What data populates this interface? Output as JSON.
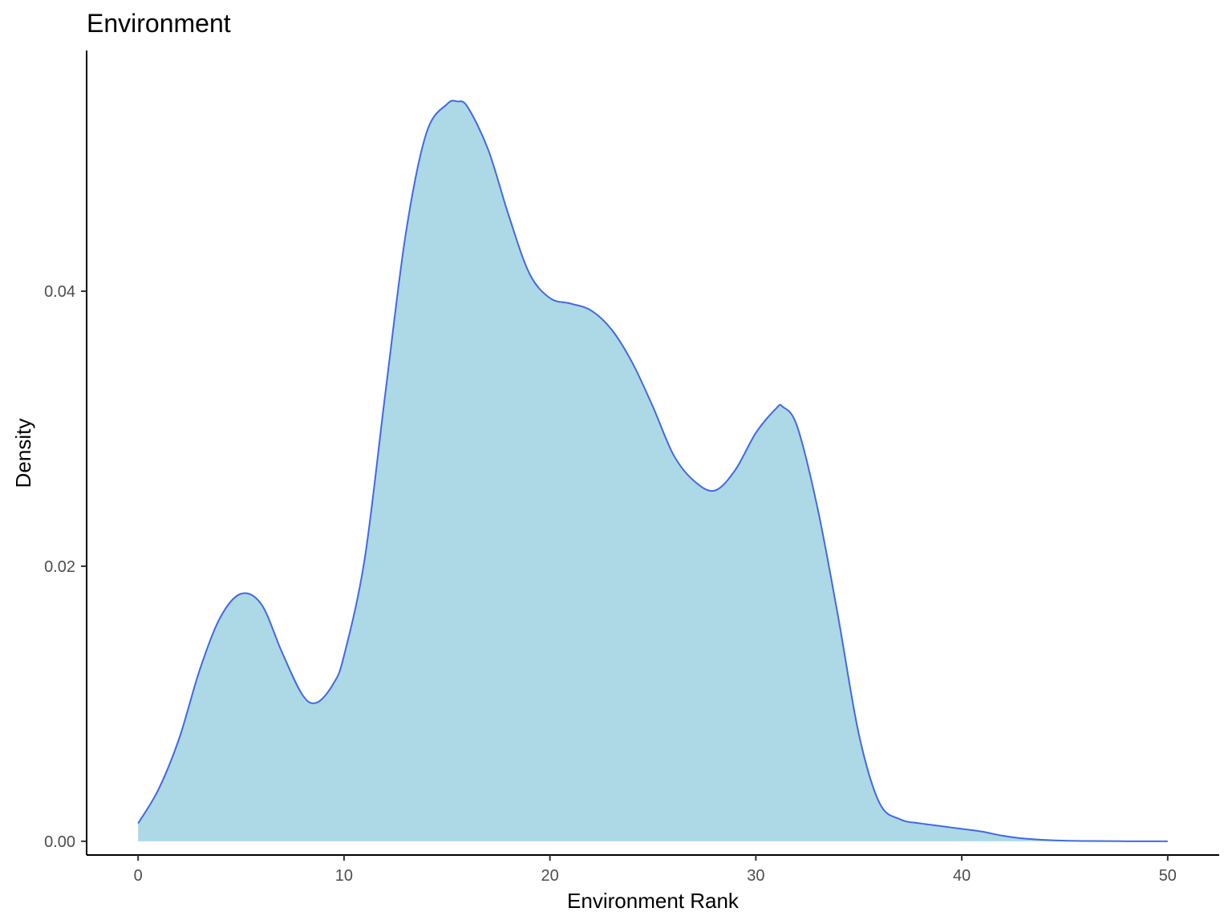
{
  "chart_data": {
    "type": "area",
    "title": "Environment",
    "xlabel": "Environment Rank",
    "ylabel": "Density",
    "xlim": [
      -2.5,
      52.5
    ],
    "ylim": [
      -0.001,
      0.0575
    ],
    "x_ticks": [
      0,
      10,
      20,
      30,
      40,
      50
    ],
    "x_tick_labels": [
      "0",
      "10",
      "20",
      "30",
      "40",
      "50"
    ],
    "y_ticks": [
      0,
      0.02,
      0.04
    ],
    "y_tick_labels": [
      "0.00",
      "0.02",
      "0.04"
    ],
    "grid": false,
    "legend": "none",
    "fill_color": "#ADD8E6",
    "line_color": "#4169E1",
    "series": [
      {
        "x": [
          0,
          1,
          2,
          3,
          4,
          5,
          6,
          7,
          8,
          8.7,
          9.5,
          10,
          11,
          12,
          13,
          14,
          15,
          15.5,
          16,
          17,
          18,
          19,
          20,
          21,
          22,
          23,
          24,
          25,
          26,
          27,
          28,
          29,
          30,
          31,
          31.3,
          32,
          33,
          34,
          35,
          36,
          37,
          38,
          39,
          40,
          41,
          42,
          43,
          44,
          45,
          46,
          47,
          48,
          49,
          50
        ],
        "values": [
          0.0013,
          0.0038,
          0.0075,
          0.0125,
          0.0163,
          0.018,
          0.0172,
          0.0137,
          0.0106,
          0.0101,
          0.0115,
          0.0135,
          0.0205,
          0.0325,
          0.0442,
          0.0515,
          0.0536,
          0.0538,
          0.0534,
          0.0503,
          0.0455,
          0.0413,
          0.0395,
          0.0391,
          0.0386,
          0.0372,
          0.0348,
          0.0316,
          0.0281,
          0.0262,
          0.0255,
          0.027,
          0.0297,
          0.0315,
          0.0316,
          0.0302,
          0.0242,
          0.0163,
          0.0078,
          0.0028,
          0.0016,
          0.0013,
          0.0011,
          0.0009,
          0.0007,
          0.0004,
          0.0002,
          0.0001,
          4e-05,
          2e-05,
          1e-05,
          0.0,
          0.0,
          0.0
        ]
      }
    ]
  }
}
